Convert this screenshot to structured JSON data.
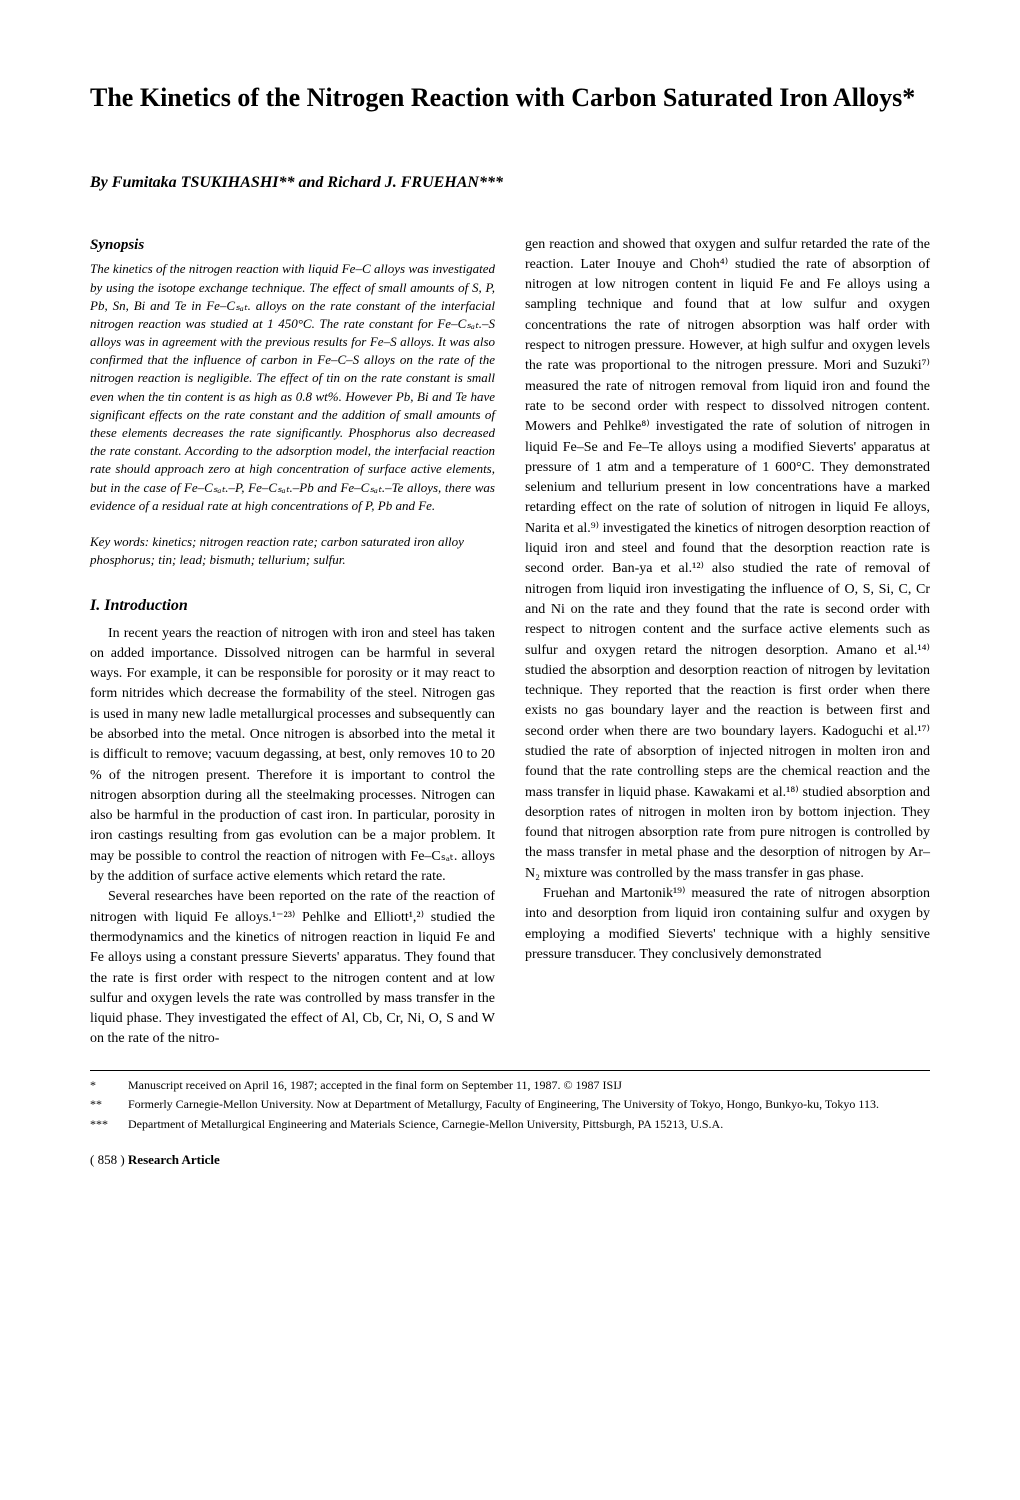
{
  "title": "The Kinetics of the Nitrogen Reaction with Carbon Saturated Iron Alloys*",
  "authors": "By Fumitaka TSUKIHASHI** and Richard J. FRUEHAN***",
  "synopsis": {
    "heading": "Synopsis",
    "body": "The kinetics of the nitrogen reaction with liquid Fe–C alloys was investigated by using the isotope exchange technique. The effect of small amounts of S, P, Pb, Sn, Bi and Te in Fe–Cₛₐₜ. alloys on the rate constant of the interfacial nitrogen reaction was studied at 1 450°C. The rate constant for Fe–Cₛₐₜ.–S alloys was in agreement with the previous results for Fe–S alloys. It was also confirmed that the influence of carbon in Fe–C–S alloys on the rate of the nitrogen reaction is negligible. The effect of tin on the rate constant is small even when the tin content is as high as 0.8 wt%. However Pb, Bi and Te have significant effects on the rate constant and the addition of small amounts of these elements decreases the rate significantly. Phosphorus also decreased the rate constant. According to the adsorption model, the interfacial reaction rate should approach zero at high concentration of surface active elements, but in the case of Fe–Cₛₐₜ.–P, Fe–Cₛₐₜ.–Pb and Fe–Cₛₐₜ.–Te alloys, there was evidence of a residual rate at high concentrations of P, Pb and Fe."
  },
  "keywords": "Key words: kinetics; nitrogen reaction rate; carbon saturated iron alloy phosphorus; tin; lead; bismuth; tellurium; sulfur.",
  "section1": {
    "heading": "I. Introduction",
    "p1": "In recent years the reaction of nitrogen with iron and steel has taken on added importance. Dissolved nitrogen can be harmful in several ways. For example, it can be responsible for porosity or it may react to form nitrides which decrease the formability of the steel. Nitrogen gas is used in many new ladle metallurgical processes and subsequently can be absorbed into the metal. Once nitrogen is absorbed into the metal it is difficult to remove; vacuum degassing, at best, only removes 10 to 20 % of the nitrogen present. Therefore it is important to control the nitrogen absorption during all the steelmaking processes. Nitrogen can also be harmful in the production of cast iron. In particular, porosity in iron castings resulting from gas evolution can be a major problem. It may be possible to control the reaction of nitrogen with Fe–Cₛₐₜ. alloys by the addition of surface active elements which retard the rate.",
    "p2": "Several researches have been reported on the rate of the reaction of nitrogen with liquid Fe alloys.¹⁻²³⁾ Pehlke and Elliott¹,²⁾ studied the thermodynamics and the kinetics of nitrogen reaction in liquid Fe and Fe alloys using a constant pressure Sieverts' apparatus. They found that the rate is first order with respect to the nitrogen content and at low sulfur and oxygen levels the rate was controlled by mass transfer in the liquid phase. They investigated the effect of Al, Cb, Cr, Ni, O, S and W on the rate of the nitro-"
  },
  "col2": {
    "p1": "gen reaction and showed that oxygen and sulfur retarded the rate of the reaction. Later Inouye and Choh⁴⁾ studied the rate of absorption of nitrogen at low nitrogen content in liquid Fe and Fe alloys using a sampling technique and found that at low sulfur and oxygen concentrations the rate of nitrogen absorption was half order with respect to nitrogen pressure. However, at high sulfur and oxygen levels the rate was proportional to the nitrogen pressure. Mori and Suzuki⁷⁾ measured the rate of nitrogen removal from liquid iron and found the rate to be second order with respect to dissolved nitrogen content. Mowers and Pehlke⁸⁾ investigated the rate of solution of nitrogen in liquid Fe–Se and Fe–Te alloys using a modified Sieverts' apparatus at pressure of 1 atm and a temperature of 1 600°C. They demonstrated selenium and tellurium present in low concentrations have a marked retarding effect on the rate of solution of nitrogen in liquid Fe alloys, Narita et al.⁹⁾ investigated the kinetics of nitrogen desorption reaction of liquid iron and steel and found that the desorption reaction rate is second order. Ban-ya et al.¹²⁾ also studied the rate of removal of nitrogen from liquid iron investigating the influence of O, S, Si, C, Cr and Ni on the rate and they found that the rate is second order with respect to nitrogen content and the surface active elements such as sulfur and oxygen retard the nitrogen desorption. Amano et al.¹⁴⁾ studied the absorption and desorption reaction of nitrogen by levitation technique. They reported that the reaction is first order when there exists no gas boundary layer and the reaction is between first and second order when there are two boundary layers. Kadoguchi et al.¹⁷⁾ studied the rate of absorption of injected nitrogen in molten iron and found that the rate controlling steps are the chemical reaction and the mass transfer in liquid phase. Kawakami et al.¹⁸⁾ studied absorption and desorption rates of nitrogen in molten iron by bottom injection. They found that nitrogen absorption rate from pure nitrogen is controlled by the mass transfer in metal phase and the desorption of nitrogen by Ar–N₂ mixture was controlled by the mass transfer in gas phase.",
    "p2": "Fruehan and Martonik¹⁹⁾ measured the rate of nitrogen absorption into and desorption from liquid iron containing sulfur and oxygen by employing a modified Sieverts' technique with a highly sensitive pressure transducer. They conclusively demonstrated"
  },
  "footnotes": {
    "f1": {
      "mark": "*",
      "text": "Manuscript received on April 16, 1987; accepted in the final form on September 11, 1987. © 1987 ISIJ"
    },
    "f2": {
      "mark": "**",
      "text": "Formerly Carnegie-Mellon University. Now at Department of Metallurgy, Faculty of Engineering, The University of Tokyo, Hongo, Bunkyo-ku, Tokyo 113."
    },
    "f3": {
      "mark": "***",
      "text": "Department of Metallurgical Engineering and Materials Science, Carnegie-Mellon University, Pittsburgh, PA 15213, U.S.A."
    }
  },
  "footer": {
    "pagenum": "( 858 )",
    "label": "Research Article"
  }
}
